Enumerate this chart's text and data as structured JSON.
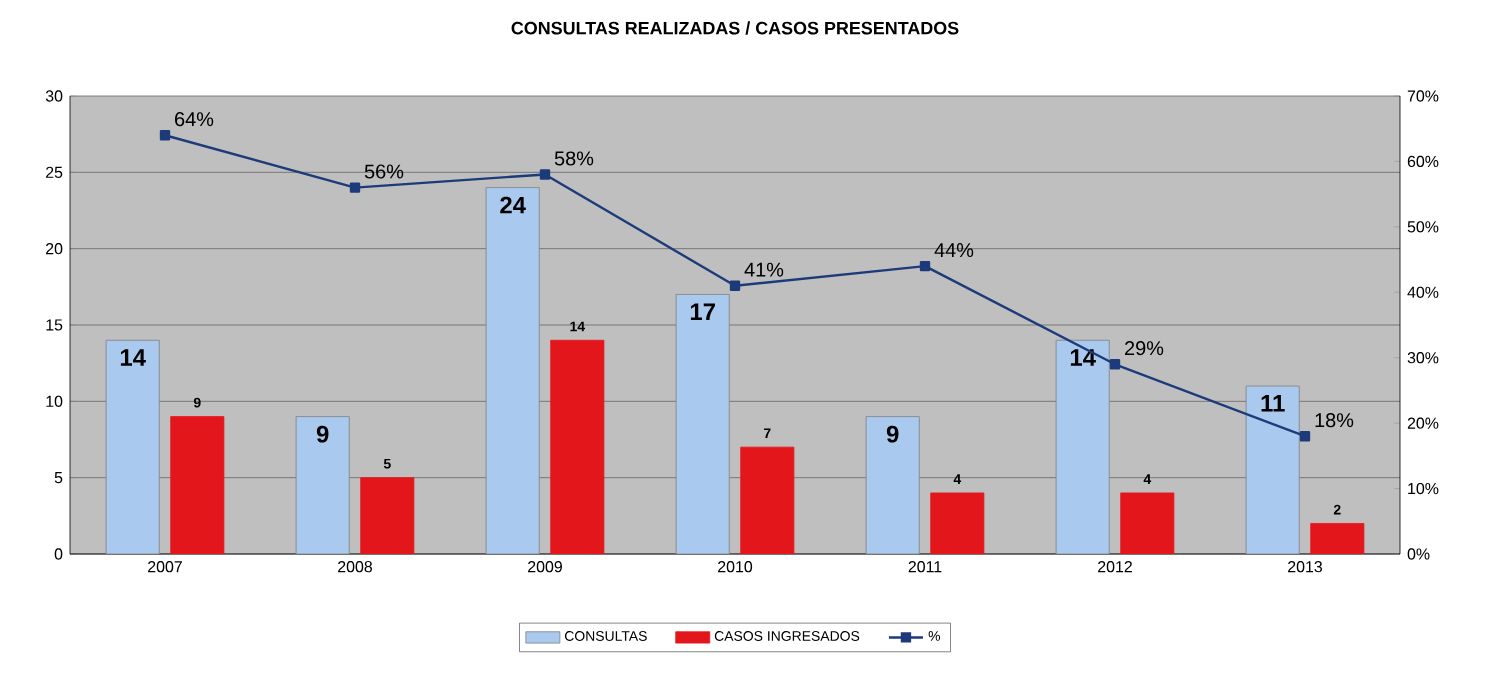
{
  "chart_data": {
    "type": "bar",
    "title": "CONSULTAS REALIZADAS / CASOS PRESENTADOS",
    "categories": [
      "2007",
      "2008",
      "2009",
      "2010",
      "2011",
      "2012",
      "2013"
    ],
    "series": [
      {
        "name": "CONSULTAS",
        "color": "#a9c9ee",
        "values": [
          14,
          9,
          24,
          17,
          9,
          14,
          11
        ],
        "value_labels": [
          "14",
          "9",
          "24",
          "17",
          "9",
          "14",
          "11"
        ]
      },
      {
        "name": "CASOS INGRESADOS",
        "color": "#e3161b",
        "values": [
          9,
          5,
          14,
          7,
          4,
          4,
          2
        ],
        "value_labels": [
          "9",
          "5",
          "14",
          "7",
          "4",
          "4",
          "2"
        ]
      },
      {
        "name": "%",
        "type": "line",
        "axis": "y2",
        "color": "#1d3b7a",
        "marker": "square",
        "line_style": "solid",
        "values": [
          64,
          56,
          58,
          41,
          44,
          29,
          18
        ],
        "value_labels": [
          "64%",
          "56%",
          "58%",
          "41%",
          "44%",
          "29%",
          "18%"
        ]
      }
    ],
    "ylim": [
      0,
      30
    ],
    "yticks": [
      0,
      5,
      10,
      15,
      20,
      25,
      30
    ],
    "y2lim": [
      0,
      70
    ],
    "y2ticks": [
      {
        "value": 0,
        "label": "0%"
      },
      {
        "value": 10,
        "label": "10%"
      },
      {
        "value": 20,
        "label": "20%"
      },
      {
        "value": 30,
        "label": "30%"
      },
      {
        "value": 40,
        "label": "40%"
      },
      {
        "value": 50,
        "label": "50%"
      },
      {
        "value": 60,
        "label": "60%"
      },
      {
        "value": 70,
        "label": "70%"
      }
    ],
    "grid": "y",
    "legend": "bottom"
  }
}
